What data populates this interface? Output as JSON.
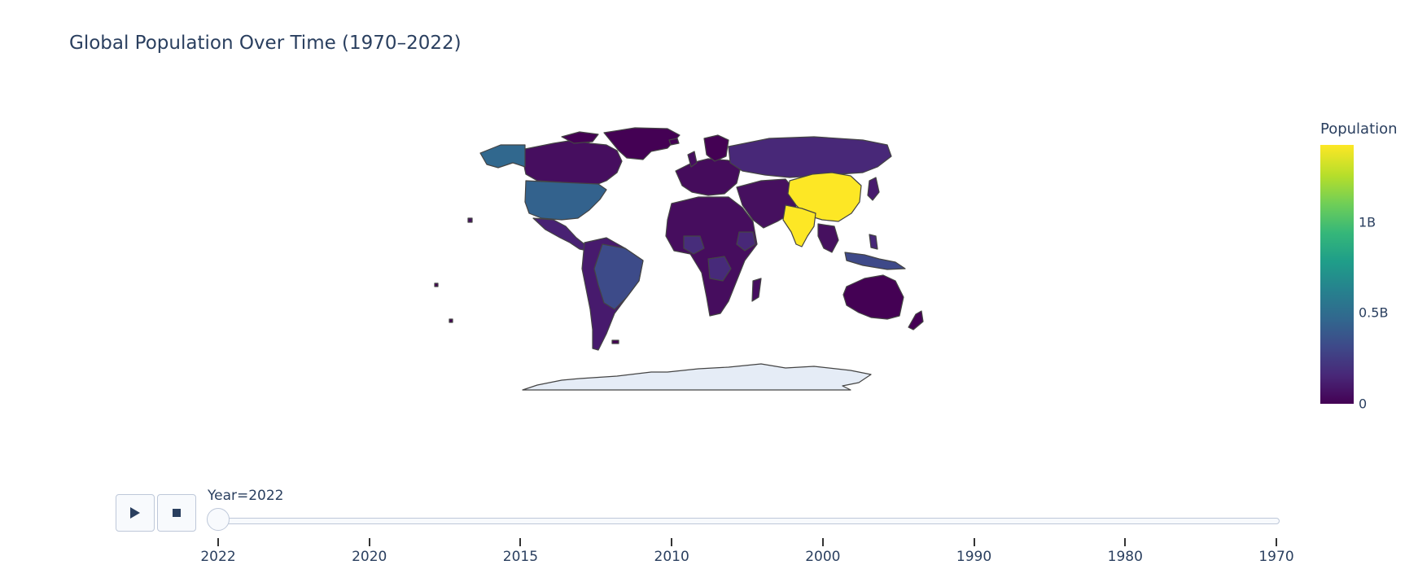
{
  "title": "Global Population Over Time (1970–2022)",
  "colorbar": {
    "title": "Population",
    "ticks": [
      {
        "label": "0",
        "value": 0
      },
      {
        "label": "0.5B",
        "value": 500000000
      },
      {
        "label": "1B",
        "value": 1000000000
      }
    ],
    "max_value": 1425000000
  },
  "animation": {
    "play_icon": "play-icon",
    "stop_icon": "stop-icon",
    "current_label": "Year=2022",
    "steps": [
      "2022",
      "2020",
      "2015",
      "2010",
      "2000",
      "1990",
      "1980",
      "1970"
    ],
    "current_index": 0
  },
  "colors": {
    "low": "#440154",
    "high": "#fde725",
    "land": "#450f5f",
    "antarctica": "#e5ecf6",
    "border": "#444444"
  },
  "map_data": {
    "year": 2022,
    "regions": [
      {
        "name": "China",
        "population": 1425000000
      },
      {
        "name": "India",
        "population": 1417000000
      },
      {
        "name": "United States",
        "population": 338000000
      },
      {
        "name": "Indonesia",
        "population": 275000000
      },
      {
        "name": "Brazil",
        "population": 215000000
      },
      {
        "name": "Russia",
        "population": 144000000
      },
      {
        "name": "Mexico",
        "population": 127000000
      },
      {
        "name": "Ethiopia",
        "population": 123000000
      },
      {
        "name": "Canada",
        "population": 38000000
      },
      {
        "name": "Greenland",
        "population": 56000
      },
      {
        "name": "Australia",
        "population": 26000000
      }
    ]
  }
}
